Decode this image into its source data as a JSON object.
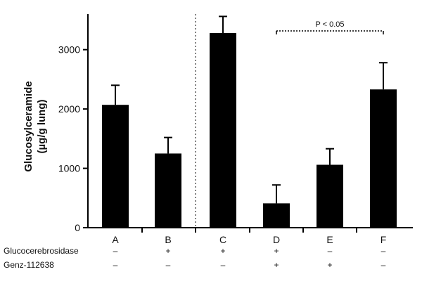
{
  "chart_data": {
    "type": "bar",
    "categories": [
      "A",
      "B",
      "C",
      "D",
      "E",
      "F"
    ],
    "values": [
      2070,
      1250,
      3280,
      410,
      1060,
      2330
    ],
    "error_upper": [
      2400,
      1520,
      3560,
      720,
      1330,
      2780
    ],
    "ylabel_lines": [
      "Glucosylceramide",
      "(µg/g lung)"
    ],
    "ylim": [
      0,
      3600
    ],
    "yticks": [
      0,
      1000,
      2000,
      3000
    ],
    "ytick_labels": [
      "0",
      "1000",
      "2000",
      "3000"
    ],
    "bar_color": "#000000",
    "divider_after_index": 1,
    "significance": {
      "from": "D",
      "to": "F",
      "label": "P < 0.05"
    },
    "conditions": [
      {
        "name": "Glucocerebrosidase",
        "marks": [
          "–",
          "+",
          "+",
          "+",
          "–",
          "–"
        ]
      },
      {
        "name": "Genz-112638",
        "marks": [
          "–",
          "–",
          "–",
          "+",
          "+",
          "–"
        ]
      }
    ]
  }
}
